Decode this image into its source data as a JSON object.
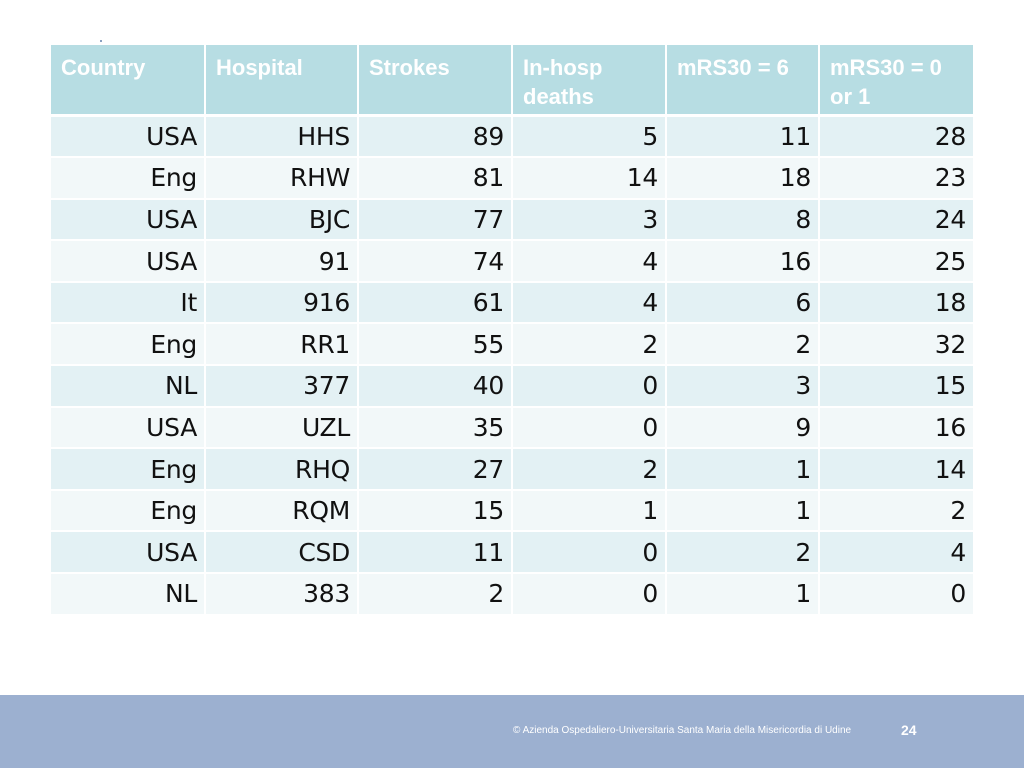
{
  "table": {
    "headers": [
      "Country",
      "Hospital",
      "Strokes",
      "In-hosp deaths",
      "mRS30 = 6",
      "mRS30 = 0 or 1"
    ],
    "rows": [
      [
        "USA",
        "HHS",
        "89",
        "5",
        "11",
        "28"
      ],
      [
        "Eng",
        "RHW",
        "81",
        "14",
        "18",
        "23"
      ],
      [
        "USA",
        "BJC",
        "77",
        "3",
        "8",
        "24"
      ],
      [
        "USA",
        "91",
        "74",
        "4",
        "16",
        "25"
      ],
      [
        "It",
        "916",
        "61",
        "4",
        "6",
        "18"
      ],
      [
        "Eng",
        "RR1",
        "55",
        "2",
        "2",
        "32"
      ],
      [
        "NL",
        "377",
        "40",
        "0",
        "3",
        "15"
      ],
      [
        "USA",
        "UZL",
        "35",
        "0",
        "9",
        "16"
      ],
      [
        "Eng",
        "RHQ",
        "27",
        "2",
        "1",
        "14"
      ],
      [
        "Eng",
        "RQM",
        "15",
        "1",
        "1",
        "2"
      ],
      [
        "USA",
        "CSD",
        "11",
        "0",
        "2",
        "4"
      ],
      [
        "NL",
        "383",
        "2",
        "0",
        "1",
        "0"
      ]
    ]
  },
  "footer": {
    "copyright": "© Azienda Ospedaliero-Universitaria Santa Maria della Misericordia di Udine",
    "page_number": "24"
  },
  "colors": {
    "header_bg": "#b7dde3",
    "row_odd_bg": "#e3f1f4",
    "row_even_bg": "#f2f8f9",
    "footer_bg": "#9cb0d0"
  }
}
